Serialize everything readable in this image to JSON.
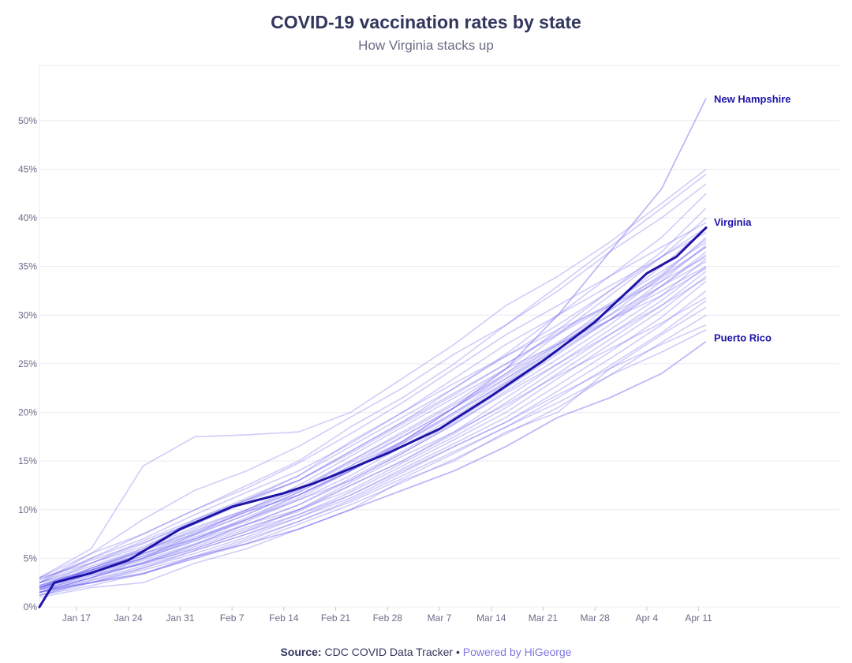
{
  "title": "COVID-19 vaccination rates by state",
  "subtitle": "How Virginia stacks up",
  "footer": {
    "source_label": "Source:",
    "source_text": "CDC COVID Data Tracker",
    "separator": "•",
    "powered_by": "Powered by HiGeorge"
  },
  "colors": {
    "highlight": "#1e14a8",
    "states": "#6e63f0",
    "grid": "#ececf2",
    "tick_text": "#6b6d88",
    "label_text": "#1e14a8"
  },
  "chart_data": {
    "type": "line",
    "title": "COVID-19 vaccination rates by state",
    "subtitle": "How Virginia stacks up",
    "xlabel": "",
    "ylabel": "",
    "xlim": [
      "2021-01-12",
      "2021-04-12"
    ],
    "ylim": [
      0,
      0.525
    ],
    "x_ticks": [
      "Jan 17",
      "Jan 24",
      "Jan 31",
      "Feb 7",
      "Feb 14",
      "Feb 21",
      "Feb 28",
      "Mar 7",
      "Mar 14",
      "Mar 21",
      "Mar 28",
      "Apr 4",
      "Apr 11"
    ],
    "x_tick_dates": [
      "2021-01-17",
      "2021-01-24",
      "2021-01-31",
      "2021-02-07",
      "2021-02-14",
      "2021-02-21",
      "2021-02-28",
      "2021-03-07",
      "2021-03-14",
      "2021-03-21",
      "2021-03-28",
      "2021-04-04",
      "2021-04-11"
    ],
    "y_ticks": [
      0,
      0.05,
      0.1,
      0.15,
      0.2,
      0.25,
      0.3,
      0.35,
      0.4,
      0.45,
      0.5
    ],
    "y_tick_labels": [
      "0%",
      "5%",
      "10%",
      "15%",
      "20%",
      "25%",
      "30%",
      "35%",
      "40%",
      "45%",
      "50%"
    ],
    "grid": true,
    "x_dates": [
      "2021-01-12",
      "2021-01-19",
      "2021-01-26",
      "2021-02-02",
      "2021-02-09",
      "2021-02-16",
      "2021-02-23",
      "2021-03-02",
      "2021-03-09",
      "2021-03-16",
      "2021-03-23",
      "2021-03-30",
      "2021-04-06",
      "2021-04-12"
    ],
    "highlight_series": {
      "name": "Virginia",
      "x": [
        "2021-01-12",
        "2021-01-14",
        "2021-01-19",
        "2021-01-24",
        "2021-01-31",
        "2021-02-07",
        "2021-02-14",
        "2021-02-18",
        "2021-02-21",
        "2021-02-28",
        "2021-03-07",
        "2021-03-14",
        "2021-03-21",
        "2021-03-28",
        "2021-04-04",
        "2021-04-08",
        "2021-04-12"
      ],
      "values": [
        0.0,
        0.025,
        0.035,
        0.048,
        0.08,
        0.103,
        0.117,
        0.127,
        0.136,
        0.158,
        0.183,
        0.217,
        0.253,
        0.293,
        0.343,
        0.36,
        0.39
      ]
    },
    "labeled_series": [
      {
        "name": "New Hampshire",
        "values": [
          0.02,
          0.038,
          0.058,
          0.078,
          0.098,
          0.115,
          0.14,
          0.17,
          0.205,
          0.245,
          0.3,
          0.365,
          0.43,
          0.523
        ]
      },
      {
        "name": "Puerto Rico",
        "values": [
          0.015,
          0.025,
          0.034,
          0.052,
          0.065,
          0.08,
          0.1,
          0.12,
          0.14,
          0.165,
          0.195,
          0.215,
          0.24,
          0.273
        ]
      }
    ],
    "series": [
      {
        "values": [
          0.03,
          0.06,
          0.145,
          0.175,
          0.177,
          0.18,
          0.2,
          0.235,
          0.27,
          0.31,
          0.34,
          0.375,
          0.415,
          0.45
        ]
      },
      {
        "values": [
          0.025,
          0.055,
          0.09,
          0.12,
          0.14,
          0.165,
          0.195,
          0.225,
          0.26,
          0.29,
          0.33,
          0.37,
          0.41,
          0.445
        ]
      },
      {
        "values": [
          0.028,
          0.05,
          0.075,
          0.1,
          0.125,
          0.15,
          0.185,
          0.215,
          0.25,
          0.29,
          0.325,
          0.365,
          0.4,
          0.435
        ]
      },
      {
        "values": [
          0.02,
          0.045,
          0.065,
          0.088,
          0.11,
          0.13,
          0.16,
          0.19,
          0.225,
          0.26,
          0.3,
          0.34,
          0.38,
          0.425
        ]
      },
      {
        "values": [
          0.025,
          0.042,
          0.06,
          0.082,
          0.1,
          0.12,
          0.15,
          0.18,
          0.21,
          0.245,
          0.285,
          0.325,
          0.365,
          0.41
        ]
      },
      {
        "values": [
          0.018,
          0.04,
          0.058,
          0.075,
          0.095,
          0.118,
          0.145,
          0.17,
          0.205,
          0.24,
          0.28,
          0.32,
          0.36,
          0.4
        ]
      },
      {
        "values": [
          0.022,
          0.038,
          0.052,
          0.072,
          0.09,
          0.115,
          0.14,
          0.168,
          0.2,
          0.235,
          0.27,
          0.31,
          0.35,
          0.39
        ]
      },
      {
        "values": [
          0.02,
          0.036,
          0.05,
          0.07,
          0.088,
          0.11,
          0.135,
          0.165,
          0.195,
          0.23,
          0.265,
          0.3,
          0.34,
          0.38
        ]
      },
      {
        "values": [
          0.015,
          0.035,
          0.05,
          0.068,
          0.085,
          0.105,
          0.132,
          0.16,
          0.19,
          0.225,
          0.26,
          0.295,
          0.335,
          0.372
        ]
      },
      {
        "values": [
          0.025,
          0.037,
          0.055,
          0.07,
          0.09,
          0.11,
          0.13,
          0.158,
          0.188,
          0.222,
          0.255,
          0.29,
          0.33,
          0.365
        ]
      },
      {
        "values": [
          0.02,
          0.034,
          0.048,
          0.065,
          0.085,
          0.1,
          0.128,
          0.155,
          0.18,
          0.215,
          0.25,
          0.285,
          0.32,
          0.358
        ]
      },
      {
        "values": [
          0.018,
          0.032,
          0.046,
          0.064,
          0.082,
          0.098,
          0.125,
          0.15,
          0.178,
          0.21,
          0.245,
          0.28,
          0.315,
          0.35
        ]
      },
      {
        "values": [
          0.015,
          0.03,
          0.045,
          0.062,
          0.08,
          0.1,
          0.12,
          0.148,
          0.175,
          0.205,
          0.24,
          0.275,
          0.31,
          0.345
        ]
      },
      {
        "values": [
          0.02,
          0.033,
          0.044,
          0.06,
          0.078,
          0.095,
          0.118,
          0.145,
          0.172,
          0.2,
          0.235,
          0.27,
          0.305,
          0.34
        ]
      },
      {
        "values": [
          0.015,
          0.028,
          0.042,
          0.058,
          0.075,
          0.095,
          0.115,
          0.142,
          0.168,
          0.195,
          0.228,
          0.262,
          0.298,
          0.335
        ]
      },
      {
        "values": [
          0.012,
          0.027,
          0.04,
          0.055,
          0.072,
          0.092,
          0.112,
          0.138,
          0.165,
          0.19,
          0.222,
          0.255,
          0.29,
          0.325
        ]
      },
      {
        "values": [
          0.018,
          0.025,
          0.038,
          0.052,
          0.07,
          0.088,
          0.11,
          0.135,
          0.16,
          0.185,
          0.215,
          0.248,
          0.282,
          0.315
        ]
      },
      {
        "values": [
          0.01,
          0.02,
          0.025,
          0.045,
          0.06,
          0.08,
          0.1,
          0.13,
          0.15,
          0.18,
          0.2,
          0.245,
          0.28,
          0.308
        ]
      },
      {
        "values": [
          0.012,
          0.025,
          0.035,
          0.05,
          0.065,
          0.085,
          0.105,
          0.128,
          0.152,
          0.178,
          0.205,
          0.238,
          0.272,
          0.3
        ]
      },
      {
        "values": [
          0.02,
          0.04,
          0.06,
          0.09,
          0.11,
          0.135,
          0.17,
          0.2,
          0.23,
          0.258,
          0.285,
          0.31,
          0.335,
          0.36
        ]
      },
      {
        "values": [
          0.015,
          0.03,
          0.05,
          0.075,
          0.1,
          0.125,
          0.155,
          0.185,
          0.215,
          0.245,
          0.27,
          0.295,
          0.32,
          0.348
        ]
      },
      {
        "values": [
          0.025,
          0.05,
          0.07,
          0.095,
          0.118,
          0.14,
          0.168,
          0.2,
          0.235,
          0.27,
          0.3,
          0.33,
          0.36,
          0.385
        ]
      },
      {
        "values": [
          0.03,
          0.045,
          0.062,
          0.085,
          0.108,
          0.13,
          0.16,
          0.19,
          0.22,
          0.25,
          0.28,
          0.31,
          0.34,
          0.37
        ]
      },
      {
        "values": [
          0.018,
          0.03,
          0.045,
          0.06,
          0.078,
          0.1,
          0.125,
          0.15,
          0.18,
          0.208,
          0.238,
          0.265,
          0.292,
          0.318
        ]
      },
      {
        "values": [
          0.015,
          0.025,
          0.04,
          0.058,
          0.075,
          0.092,
          0.115,
          0.14,
          0.165,
          0.19,
          0.218,
          0.245,
          0.27,
          0.29
        ]
      },
      {
        "values": [
          0.03,
          0.055,
          0.075,
          0.1,
          0.122,
          0.148,
          0.178,
          0.21,
          0.245,
          0.28,
          0.31,
          0.34,
          0.37,
          0.395
        ]
      },
      {
        "values": [
          0.02,
          0.035,
          0.05,
          0.068,
          0.09,
          0.112,
          0.14,
          0.168,
          0.198,
          0.232,
          0.268,
          0.305,
          0.342,
          0.378
        ]
      },
      {
        "values": [
          0.022,
          0.04,
          0.058,
          0.08,
          0.1,
          0.122,
          0.15,
          0.178,
          0.208,
          0.24,
          0.272,
          0.305,
          0.338,
          0.37
        ]
      },
      {
        "values": [
          0.012,
          0.022,
          0.034,
          0.05,
          0.068,
          0.088,
          0.108,
          0.132,
          0.158,
          0.185,
          0.21,
          0.238,
          0.262,
          0.285
        ]
      },
      {
        "values": [
          0.025,
          0.045,
          0.068,
          0.09,
          0.112,
          0.135,
          0.165,
          0.195,
          0.225,
          0.258,
          0.29,
          0.325,
          0.36,
          0.39
        ]
      },
      {
        "values": [
          0.018,
          0.036,
          0.052,
          0.07,
          0.092,
          0.115,
          0.142,
          0.17,
          0.2,
          0.23,
          0.262,
          0.295,
          0.33,
          0.362
        ]
      },
      {
        "values": [
          0.02,
          0.038,
          0.055,
          0.076,
          0.098,
          0.12,
          0.148,
          0.175,
          0.205,
          0.238,
          0.27,
          0.3,
          0.33,
          0.355
        ]
      },
      {
        "values": [
          0.028,
          0.048,
          0.066,
          0.088,
          0.11,
          0.13,
          0.158,
          0.188,
          0.218,
          0.25,
          0.282,
          0.312,
          0.345,
          0.375
        ]
      },
      {
        "values": [
          0.015,
          0.03,
          0.045,
          0.064,
          0.085,
          0.105,
          0.13,
          0.158,
          0.188,
          0.22,
          0.25,
          0.28,
          0.31,
          0.338
        ]
      },
      {
        "values": [
          0.022,
          0.038,
          0.054,
          0.074,
          0.095,
          0.118,
          0.145,
          0.175,
          0.205,
          0.235,
          0.265,
          0.295,
          0.325,
          0.35
        ]
      }
    ]
  }
}
